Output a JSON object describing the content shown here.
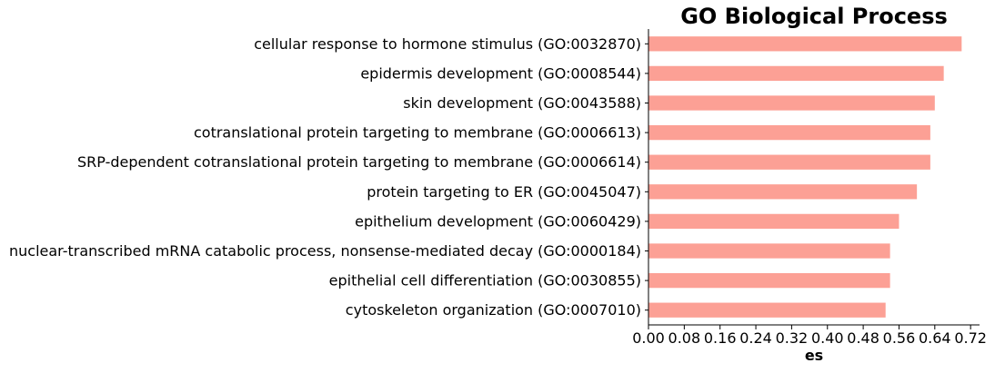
{
  "chart_data": {
    "type": "bar",
    "orientation": "horizontal",
    "title": "GO Biological Process",
    "xlabel": "es",
    "ylabel": "",
    "xlim": [
      0,
      0.74
    ],
    "xticks": [
      "0.00",
      "0.08",
      "0.16",
      "0.24",
      "0.32",
      "0.40",
      "0.48",
      "0.56",
      "0.64",
      "0.72"
    ],
    "grid": false,
    "bar_color": "#fca095",
    "categories": [
      "cellular response to hormone stimulus (GO:0032870)",
      "epidermis development (GO:0008544)",
      "skin development (GO:0043588)",
      "cotranslational protein targeting to membrane (GO:0006613)",
      "SRP-dependent cotranslational protein targeting to membrane (GO:0006614)",
      "protein targeting to ER (GO:0045047)",
      "epithelium development (GO:0060429)",
      "nuclear-transcribed mRNA catabolic process, nonsense-mediated decay (GO:0000184)",
      "epithelial cell differentiation (GO:0030855)",
      "cytoskeleton organization (GO:0007010)"
    ],
    "values": [
      0.7,
      0.66,
      0.64,
      0.63,
      0.63,
      0.6,
      0.56,
      0.54,
      0.54,
      0.53
    ]
  }
}
